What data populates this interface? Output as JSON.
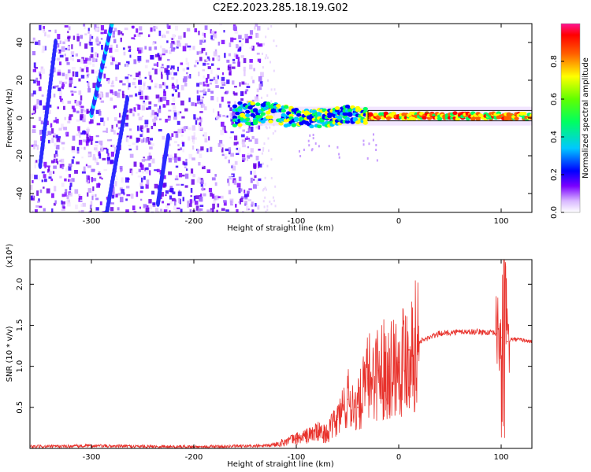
{
  "title": "C2E2.2023.285.18.19.G02",
  "chart_data": [
    {
      "type": "heatmap",
      "xlabel": "Height of straight line (km)",
      "ylabel": "Frequency (Hz)",
      "xlim": [
        -360,
        130
      ],
      "ylim": [
        -50,
        50
      ],
      "x_ticks": [
        -300,
        -200,
        -100,
        0,
        100
      ],
      "x_tick_labels": [
        "-300",
        "-200",
        "-100",
        "0",
        "100"
      ],
      "y_ticks": [
        -40,
        -20,
        0,
        20,
        40
      ],
      "y_tick_labels": [
        "-40",
        "-20",
        "0",
        "20",
        "40"
      ],
      "colorbar": {
        "label": "Normalized spectral amplitude",
        "range": [
          0,
          1
        ],
        "ticks": [
          0.0,
          0.2,
          0.4,
          0.6,
          0.8
        ],
        "tick_labels": [
          "0.0",
          "0.2",
          "0.4",
          "0.6",
          "0.8"
        ],
        "colors": [
          "#ffffff",
          "#7a00ff",
          "#0000ff",
          "#00c8ff",
          "#00ff00",
          "#ffff00",
          "#ff8000",
          "#ff0000",
          "#ff1493"
        ]
      },
      "features": {
        "noise_region_x": [
          -360,
          -135
        ],
        "band_center_hz": 1.5,
        "band_points": [
          [
            -160,
            2
          ],
          [
            -130,
            3
          ],
          [
            -110,
            1
          ],
          [
            -90,
            0
          ],
          [
            -70,
            0
          ],
          [
            -50,
            2
          ],
          [
            -30,
            1
          ],
          [
            0,
            1
          ],
          [
            40,
            1
          ],
          [
            80,
            1
          ],
          [
            100,
            1
          ],
          [
            130,
            1
          ]
        ]
      }
    },
    {
      "type": "line",
      "xlabel": "Height of straight line (km)",
      "ylabel": "SNR (10 * v/v)",
      "y_multiplier": "(x10⁴)",
      "xlim": [
        -360,
        130
      ],
      "ylim": [
        0,
        2.3
      ],
      "x_ticks": [
        -300,
        -200,
        -100,
        0,
        100
      ],
      "x_tick_labels": [
        "-300",
        "-200",
        "-100",
        "0",
        "100"
      ],
      "y_ticks": [
        0.5,
        1.0,
        1.5,
        2.0
      ],
      "y_tick_labels": [
        "0.5",
        "1.0",
        "1.5",
        "2.0"
      ],
      "series": [
        {
          "color": "#e8312b",
          "x": [
            -360,
            -300,
            -200,
            -130,
            -120,
            -100,
            -90,
            -80,
            -70,
            -60,
            -50,
            -40,
            -30,
            -20,
            -10,
            0,
            10,
            20,
            30,
            40,
            60,
            80,
            95,
            100,
            103,
            106,
            110,
            120,
            130
          ],
          "y": [
            0.02,
            0.03,
            0.02,
            0.03,
            0.05,
            0.12,
            0.15,
            0.2,
            0.18,
            0.35,
            0.6,
            0.5,
            0.85,
            0.95,
            1.0,
            1.05,
            1.2,
            1.3,
            1.35,
            1.4,
            1.42,
            1.42,
            1.4,
            1.35,
            2.3,
            1.3,
            1.33,
            1.32,
            1.3
          ]
        }
      ]
    }
  ]
}
